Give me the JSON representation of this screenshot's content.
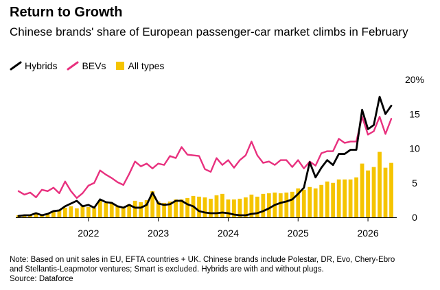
{
  "title": "Return to Growth",
  "subtitle": "Chinese brands' share of European passenger-car market climbs in February",
  "colors": {
    "hybrids": "#000000",
    "bevs": "#e8307e",
    "all_types": "#f5c400",
    "axis": "#000000"
  },
  "legend": [
    {
      "label": "Hybrids",
      "icon": "line-swatch"
    },
    {
      "label": "BEVs",
      "icon": "line-swatch"
    },
    {
      "label": "All types",
      "icon": "square-swatch"
    }
  ],
  "footnote": {
    "line1": "Note: Based on unit sales in EU, EFTA countries + UK. Chinese brands include Polestar, DR, Evo, Chery-Ebro",
    "line2": "and Stellantis-Leapmotor ventures; Smart is excluded. Hybrids are with and without plugs.",
    "line3": "Source: Dataforce"
  },
  "chart_data": {
    "type": "line",
    "title": "Return to Growth",
    "subtitle": "Chinese brands' share of European passenger-car market climbs in February",
    "xlabel": "",
    "ylabel": "",
    "y_unit": "%",
    "ylim": [
      0,
      20
    ],
    "yticks": [
      0,
      5,
      10,
      15,
      20
    ],
    "ytick_labels": [
      "0",
      "5",
      "10",
      "15",
      "20%"
    ],
    "xticks": [
      2022,
      2023,
      2024,
      2025,
      2026
    ],
    "xtick_labels": [
      "2022",
      "2023",
      "2024",
      "2025",
      "2026"
    ],
    "legend_position": "top-left",
    "grid": false,
    "start_month": "2021-01",
    "end_month": "2026-02",
    "series": [
      {
        "name": "Hybrids",
        "kind": "line",
        "values": [
          0.2,
          0.3,
          0.3,
          0.6,
          0.3,
          0.5,
          0.9,
          1.0,
          1.6,
          2.0,
          2.4,
          1.6,
          1.8,
          1.4,
          2.6,
          2.2,
          2.1,
          1.6,
          1.4,
          1.8,
          1.4,
          1.4,
          1.8,
          3.6,
          2.0,
          1.8,
          1.9,
          2.4,
          2.4,
          1.9,
          1.6,
          0.9,
          0.7,
          0.6,
          0.6,
          0.7,
          0.6,
          0.4,
          0.3,
          0.3,
          0.5,
          0.6,
          0.9,
          1.3,
          1.8,
          2.1,
          2.3,
          2.6,
          3.4,
          4.3,
          8.0,
          5.8,
          7.2,
          8.3,
          7.6,
          9.2,
          9.2,
          9.8,
          9.8,
          15.6,
          12.8,
          13.4,
          17.5,
          15.0,
          16.2
        ]
      },
      {
        "name": "BEVs",
        "kind": "line",
        "values": [
          3.8,
          3.3,
          3.6,
          2.9,
          4.0,
          3.8,
          4.3,
          3.5,
          5.2,
          3.8,
          2.8,
          3.5,
          4.6,
          5.0,
          6.8,
          6.2,
          5.7,
          5.1,
          4.7,
          6.3,
          8.1,
          7.4,
          7.8,
          7.1,
          7.8,
          7.6,
          8.9,
          8.6,
          10.2,
          9.1,
          9.0,
          8.9,
          7.0,
          6.6,
          8.6,
          7.6,
          8.3,
          7.2,
          8.3,
          9.0,
          11.0,
          9.0,
          7.9,
          8.1,
          7.6,
          8.3,
          8.3,
          7.3,
          8.3,
          7.1,
          8.1,
          7.5,
          9.3,
          9.6,
          9.6,
          11.4,
          10.8,
          11.0,
          11.0,
          14.6,
          12.0,
          12.5,
          14.6,
          12.1,
          14.3
        ]
      },
      {
        "name": "All types",
        "kind": "bar",
        "values": [
          0.3,
          0.2,
          0.3,
          0.6,
          0.4,
          0.5,
          0.8,
          1.1,
          1.4,
          1.6,
          1.3,
          1.6,
          1.5,
          1.4,
          2.5,
          2.1,
          2.0,
          1.7,
          1.5,
          1.9,
          2.4,
          2.2,
          2.5,
          3.8,
          2.3,
          2.1,
          2.3,
          2.6,
          2.6,
          2.8,
          3.1,
          3.0,
          2.9,
          2.7,
          3.2,
          3.4,
          2.6,
          2.6,
          2.7,
          2.9,
          3.3,
          3.0,
          3.4,
          3.5,
          3.6,
          3.5,
          3.6,
          3.7,
          4.2,
          4.0,
          4.4,
          4.2,
          4.7,
          5.2,
          5.0,
          5.5,
          5.5,
          5.5,
          5.8,
          7.8,
          6.8,
          7.3,
          9.5,
          7.2,
          7.9
        ]
      }
    ]
  }
}
